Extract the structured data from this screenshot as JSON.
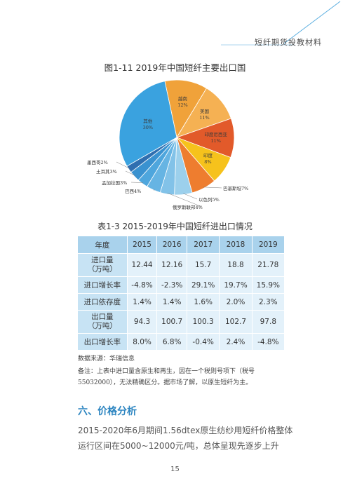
{
  "header": {
    "title": "短纤期货投教材料"
  },
  "figure": {
    "title": "图1-11  2019年中国短纤主要出口国"
  },
  "chart_data": {
    "type": "pie",
    "title": "图1-11  2019年中国短纤主要出口国",
    "slices": [
      {
        "name": "越南",
        "value": 12,
        "color": "#f0a23a"
      },
      {
        "name": "美国",
        "value": 11,
        "color": "#f5b153"
      },
      {
        "name": "印度尼西亚",
        "value": 11,
        "color": "#e25a2a"
      },
      {
        "name": "印度",
        "value": 8,
        "color": "#f6c21c"
      },
      {
        "name": "巴基斯坦",
        "value": 7,
        "color": "#ee7d2f"
      },
      {
        "name": "以色列",
        "value": 5,
        "color": "#9cd0ec"
      },
      {
        "name": "俄罗斯联邦",
        "value": 4,
        "color": "#82c2e8"
      },
      {
        "name": "巴西",
        "value": 4,
        "color": "#66b4e3"
      },
      {
        "name": "孟加拉国",
        "value": 3,
        "color": "#4ea6dd"
      },
      {
        "name": "土耳其",
        "value": 3,
        "color": "#3a92d0"
      },
      {
        "name": "墨西哥",
        "value": 2,
        "color": "#2f6fb0"
      },
      {
        "name": "其他",
        "value": 30,
        "color": "#3aa2df"
      }
    ]
  },
  "table": {
    "title": "表1-3  2015-2019年中国短纤进出口情况",
    "headers": [
      "年度",
      "2015",
      "2016",
      "2017",
      "2018",
      "2019"
    ],
    "rows": [
      {
        "label": [
          "进口量",
          "（万吨）"
        ],
        "values": [
          "12.44",
          "12.16",
          "15.7",
          "18.8",
          "21.78"
        ]
      },
      {
        "label": [
          "进口增长率"
        ],
        "values": [
          "-4.8%",
          "-2.3%",
          "29.1%",
          "19.7%",
          "15.9%"
        ]
      },
      {
        "label": [
          "进口依存度"
        ],
        "values": [
          "1.4%",
          "1.4%",
          "1.6%",
          "2.0%",
          "2.3%"
        ]
      },
      {
        "label": [
          "出口量",
          "（万吨）"
        ],
        "values": [
          "94.3",
          "100.7",
          "100.3",
          "102.7",
          "97.8"
        ]
      },
      {
        "label": [
          "出口增长率"
        ],
        "values": [
          "8.0%",
          "6.8%",
          "-0.4%",
          "2.4%",
          "-4.8%"
        ]
      }
    ]
  },
  "source": "数据来源：华瑞信息",
  "note": "备注：上表中进口量含原生和再生，因在一个税则号项下（税号55032000），无法精确区分。据市场了解，以原生短纤为主。",
  "section_title": "六、价格分析",
  "paragraph": "2015-2020年6月期间1.56dtex原生纺纱用短纤价格整体运行区间在5000~12000元/吨，总体呈现先逐步上升",
  "page_number": "15"
}
